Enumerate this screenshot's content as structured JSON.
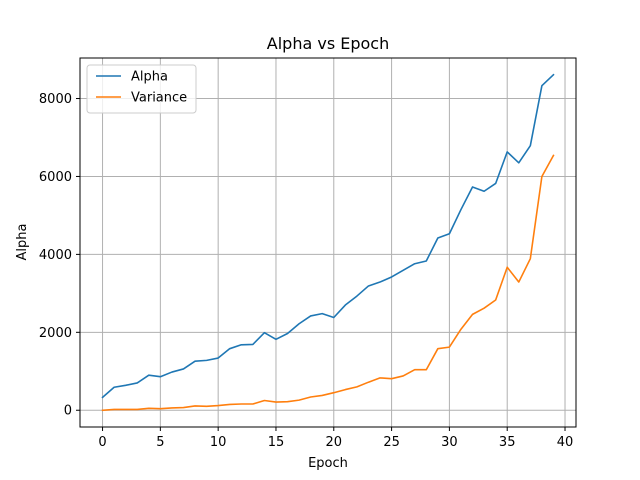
{
  "chart_data": {
    "type": "line",
    "title": "Alpha vs Epoch",
    "xlabel": "Epoch",
    "ylabel": "Alpha",
    "xlim": [
      -1.95,
      40.95
    ],
    "ylim": [
      -430,
      9040
    ],
    "xticks": [
      0,
      5,
      10,
      15,
      20,
      25,
      30,
      35,
      40
    ],
    "yticks": [
      0,
      2000,
      4000,
      6000,
      8000
    ],
    "grid": true,
    "legend_position": "top-left",
    "x": [
      0,
      1,
      2,
      3,
      4,
      5,
      6,
      7,
      8,
      9,
      10,
      11,
      12,
      13,
      14,
      15,
      16,
      17,
      18,
      19,
      20,
      21,
      22,
      23,
      24,
      25,
      26,
      27,
      28,
      29,
      30,
      31,
      32,
      33,
      34,
      35,
      36,
      37,
      38,
      39
    ],
    "series": [
      {
        "name": "Alpha",
        "color": "#1f77b4",
        "values": [
          330,
          590,
          640,
          700,
          900,
          860,
          980,
          1060,
          1260,
          1280,
          1340,
          1580,
          1680,
          1690,
          1990,
          1820,
          1970,
          2220,
          2420,
          2480,
          2380,
          2700,
          2930,
          3190,
          3290,
          3420,
          3590,
          3760,
          3830,
          4420,
          4530,
          5150,
          5730,
          5620,
          5820,
          6630,
          6350,
          6790,
          8330,
          8610
        ]
      },
      {
        "name": "Variance",
        "color": "#ff7f0e",
        "values": [
          0,
          20,
          20,
          20,
          50,
          40,
          60,
          70,
          110,
          100,
          120,
          150,
          160,
          160,
          250,
          210,
          220,
          260,
          340,
          380,
          450,
          530,
          600,
          720,
          830,
          810,
          880,
          1040,
          1040,
          1580,
          1620,
          2080,
          2460,
          2620,
          2830,
          3670,
          3290,
          3890,
          6000,
          6540
        ]
      }
    ]
  }
}
